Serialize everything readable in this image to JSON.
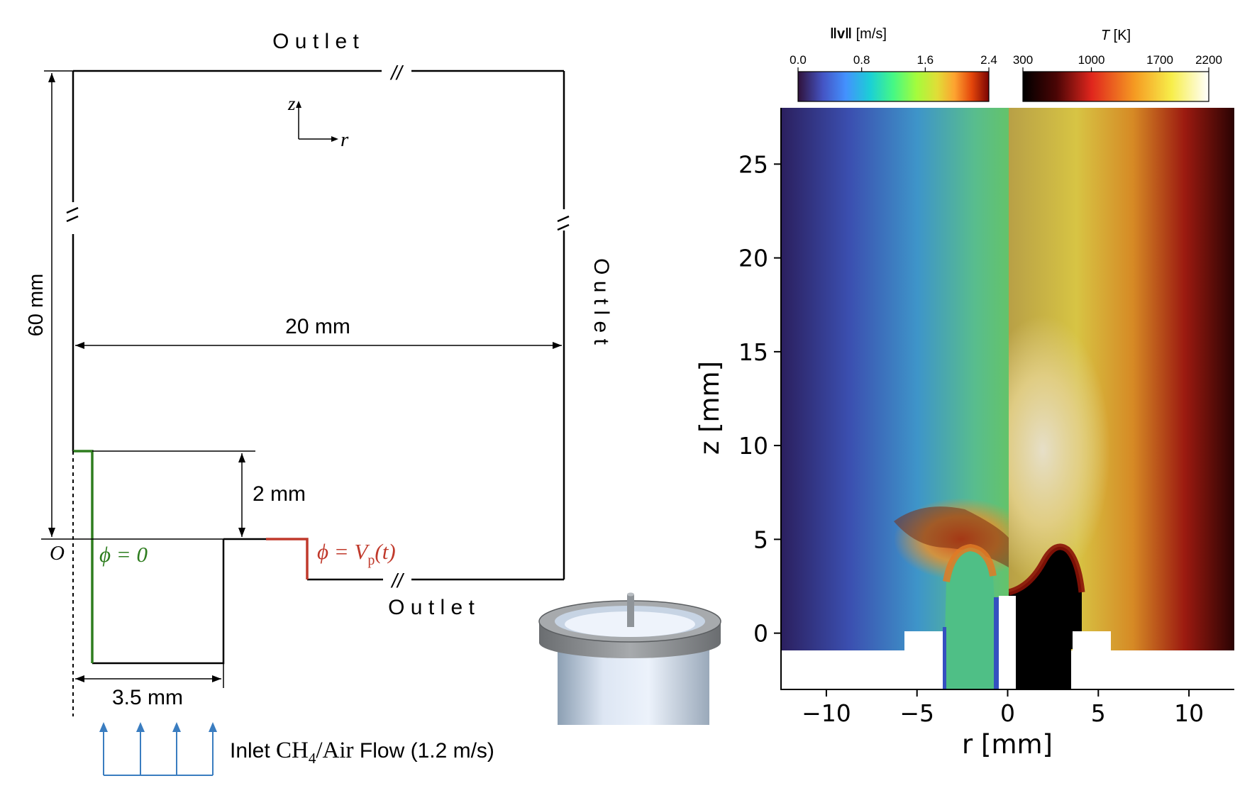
{
  "schematic": {
    "outlet_top": "O u t l e t",
    "outlet_right": "O u t l e t",
    "outlet_bottom": "O u t l e t",
    "axis_z": "z",
    "axis_r": "r",
    "dim_height": "60 mm",
    "dim_width": "20 mm",
    "dim_step": "2 mm",
    "dim_inlet": "3.5 mm",
    "origin": "O",
    "bc_ground_lhs": "ϕ = 0",
    "bc_potential_lhs": "ϕ = V",
    "bc_potential_sub": "p",
    "bc_potential_arg": "(t)",
    "inlet_prefix": "Inlet ",
    "inlet_species_a": "CH",
    "inlet_species_sub": "4",
    "inlet_species_b": "/Air",
    "inlet_suffix": " Flow (1.2 m/s)",
    "break_mark": "//",
    "colors": {
      "ground": "#2e7d1f",
      "electrode": "#c0392b",
      "inlet_arrows": "#3a7dc0"
    }
  },
  "burner_render": {
    "icon": "burner-3d-icon"
  },
  "colorbars": [
    {
      "label_main": "‖v‖",
      "label_unit": " [m/s]",
      "ticks": [
        "0.0",
        "0.8",
        "1.6",
        "2.4"
      ],
      "colormap": "turbo"
    },
    {
      "label_main": "T",
      "label_unit": " [K]",
      "ticks": [
        "300",
        "1000",
        "1700",
        "2200"
      ],
      "colormap": "hot"
    }
  ],
  "chart_data": {
    "type": "heatmap",
    "xlabel": "r [mm]",
    "ylabel": "z [mm]",
    "xlim": [
      -12.5,
      12.5
    ],
    "ylim": [
      -3,
      28
    ],
    "x_ticks": [
      -10,
      -5,
      0,
      5,
      10
    ],
    "y_ticks": [
      0,
      5,
      10,
      15,
      20,
      25
    ],
    "x_tick_labels": [
      "−10",
      "−5",
      "0",
      "5",
      "10"
    ],
    "y_tick_labels": [
      "0",
      "5",
      "10",
      "15",
      "20",
      "25"
    ],
    "left_half_field": "‖v‖ [m/s]",
    "right_half_field": "T [K]",
    "v_range": [
      0.0,
      2.4
    ],
    "T_range": [
      300,
      2200
    ]
  }
}
